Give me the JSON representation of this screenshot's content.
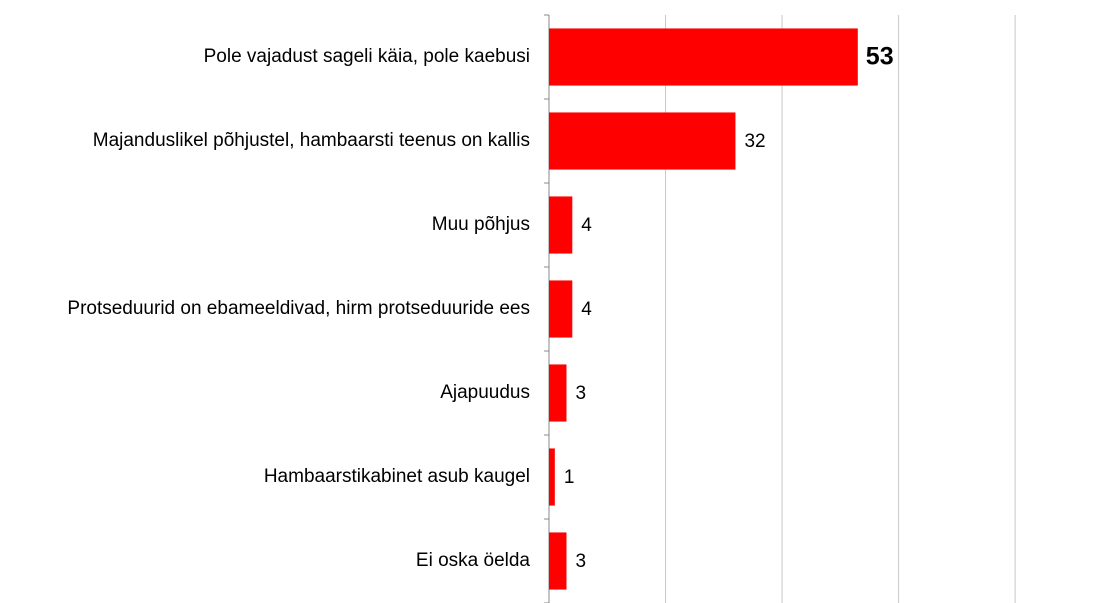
{
  "chart_data": {
    "type": "hbar",
    "categories": [
      "Pole vajadust sageli käia, pole kaebusi",
      "Majanduslikel põhjustel, hambaarsti teenus on kallis",
      "Muu põhjus",
      "Protseduurid on ebameeldivad, hirm protseduuride ees",
      "Ajapuudus",
      "Hambaarstikabinet asub kaugel",
      "Ei oska öelda"
    ],
    "values": [
      53,
      32,
      4,
      4,
      3,
      1,
      3
    ],
    "color": "#ff0000",
    "xlim": [
      0,
      98
    ],
    "xticks": [
      0,
      20,
      40,
      60,
      80
    ],
    "grid": true,
    "highlight_index": 0
  }
}
